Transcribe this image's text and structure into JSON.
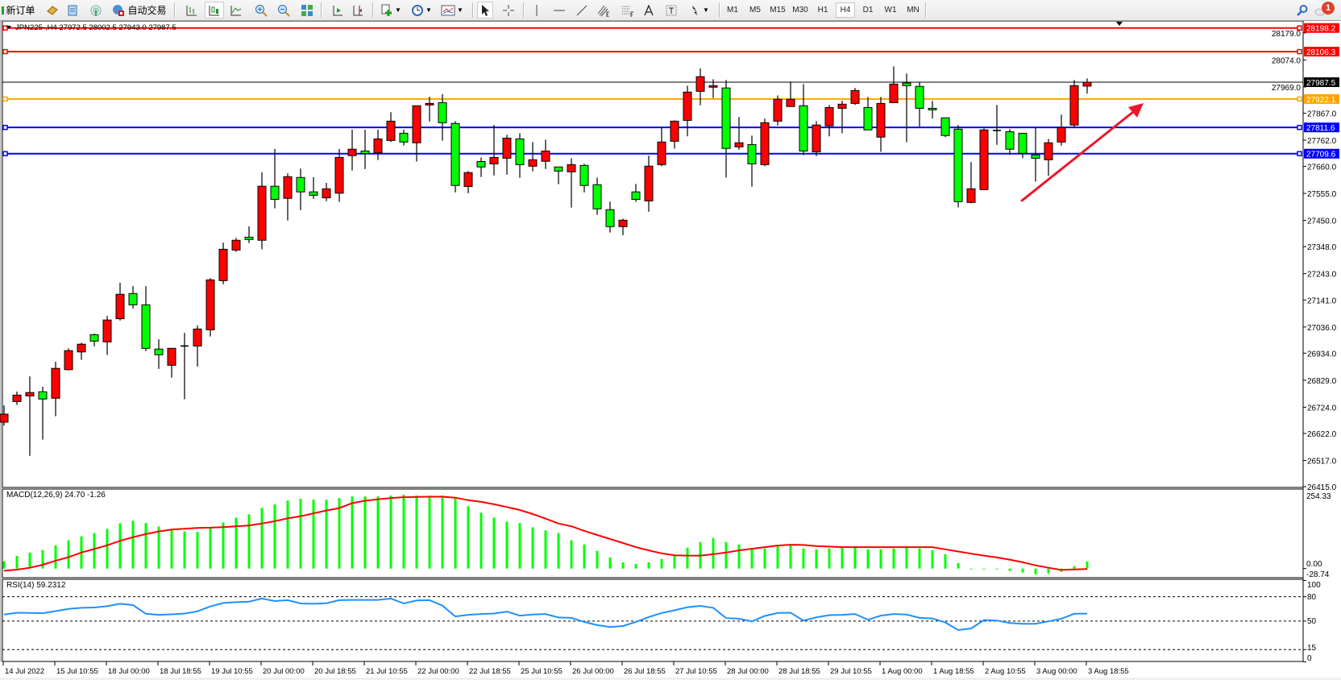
{
  "toolbar": {
    "new_order_label": "新订单",
    "auto_trading_label": "自动交易",
    "timeframes": [
      "M1",
      "M5",
      "M15",
      "M30",
      "H1",
      "H4",
      "D1",
      "W1",
      "MN"
    ],
    "active_timeframe": "H4",
    "notification_count": "1",
    "icons": [
      "new-order-icon",
      "market-watch-icon",
      "data-window-icon",
      "signals-icon",
      "auto-trading-icon",
      "bar-chart-icon",
      "candlestick-icon",
      "line-chart-icon",
      "zoom-in-icon",
      "zoom-out-icon",
      "tile-windows-icon",
      "auto-scroll-icon",
      "chart-shift-icon",
      "add-indicator-icon",
      "periods-clock-icon",
      "templates-icon",
      "cursor-icon",
      "crosshair-icon",
      "vertical-line-icon",
      "horizontal-line-icon",
      "trendline-icon",
      "fibonacci-channel-icon",
      "fibonacci-retracement-icon",
      "text-icon",
      "text-label-icon",
      "arrows-icon",
      "search-icon",
      "notification-icon"
    ]
  },
  "chart_header": "JPN225-,H4  27972.5 28002.5 27943.0 27987.5",
  "colors": {
    "bull": "#ff0000",
    "bear": "#00ff00",
    "outline": "#000000",
    "macd_hist": "#00ff00",
    "macd_signal": "#ff0000",
    "rsi": "#1e90ff",
    "arrow": "#e8192c"
  },
  "chart_data": {
    "type": "candlestick",
    "symbol": "JPN225-",
    "timeframe": "H4",
    "ohlc_order": [
      "open",
      "high",
      "low",
      "close"
    ],
    "candles": [
      [
        26666,
        26731,
        26653,
        26697
      ],
      [
        26746,
        26785,
        26733,
        26771
      ],
      [
        26768,
        26844,
        26535,
        26781
      ],
      [
        26784,
        26804,
        26598,
        26756
      ],
      [
        26759,
        26901,
        26689,
        26875
      ],
      [
        26870,
        26953,
        26867,
        26944
      ],
      [
        26939,
        26975,
        26908,
        26969
      ],
      [
        27006,
        27010,
        26961,
        26981
      ],
      [
        26978,
        27079,
        26927,
        27063
      ],
      [
        27068,
        27208,
        27061,
        27163
      ],
      [
        27166,
        27195,
        27108,
        27122
      ],
      [
        27122,
        27195,
        26942,
        26953
      ],
      [
        26950,
        26988,
        26873,
        26928
      ],
      [
        26887,
        26953,
        26839,
        26953
      ],
      [
        26960,
        27013,
        26755,
        26962
      ],
      [
        26962,
        27042,
        26882,
        27028
      ],
      [
        27025,
        27226,
        26999,
        27219
      ],
      [
        27216,
        27364,
        27202,
        27338
      ],
      [
        27335,
        27382,
        27328,
        27373
      ],
      [
        27385,
        27427,
        27362,
        27376
      ],
      [
        27373,
        27637,
        27338,
        27583
      ],
      [
        27583,
        27728,
        27497,
        27532
      ],
      [
        27536,
        27633,
        27450,
        27620
      ],
      [
        27617,
        27652,
        27490,
        27561
      ],
      [
        27561,
        27618,
        27534,
        27548
      ],
      [
        27538,
        27596,
        27525,
        27573
      ],
      [
        27556,
        27728,
        27522,
        27695
      ],
      [
        27702,
        27803,
        27644,
        27727
      ],
      [
        27720,
        27803,
        27650,
        27710
      ],
      [
        27713,
        27803,
        27685,
        27767
      ],
      [
        27761,
        27871,
        27755,
        27836
      ],
      [
        27789,
        27803,
        27741,
        27755
      ],
      [
        27752,
        27896,
        27679,
        27896
      ],
      [
        27899,
        27931,
        27835,
        27905
      ],
      [
        27908,
        27941,
        27760,
        27830
      ],
      [
        27827,
        27836,
        27559,
        27586
      ],
      [
        27582,
        27642,
        27556,
        27636
      ],
      [
        27679,
        27695,
        27619,
        27658
      ],
      [
        27670,
        27821,
        27625,
        27695
      ],
      [
        27692,
        27783,
        27628,
        27770
      ],
      [
        27767,
        27789,
        27616,
        27667
      ],
      [
        27661,
        27755,
        27641,
        27686
      ],
      [
        27680,
        27764,
        27650,
        27720
      ],
      [
        27658,
        27658,
        27591,
        27642
      ],
      [
        27639,
        27692,
        27500,
        27667
      ],
      [
        27664,
        27670,
        27559,
        27586
      ],
      [
        27589,
        27617,
        27472,
        27495
      ],
      [
        27492,
        27523,
        27403,
        27426
      ],
      [
        27426,
        27457,
        27393,
        27451
      ],
      [
        27561,
        27592,
        27522,
        27532
      ],
      [
        27526,
        27702,
        27484,
        27661
      ],
      [
        27667,
        27811,
        27661,
        27755
      ],
      [
        27758,
        27839,
        27729,
        27836
      ],
      [
        27839,
        27974,
        27777,
        27949
      ],
      [
        27952,
        28041,
        27898,
        28009
      ],
      [
        27968,
        27999,
        27926,
        27974
      ],
      [
        27965,
        27996,
        27617,
        27730
      ],
      [
        27736,
        27852,
        27725,
        27752
      ],
      [
        27745,
        27780,
        27581,
        27670
      ],
      [
        27667,
        27846,
        27661,
        27830
      ],
      [
        27836,
        27936,
        27819,
        27921
      ],
      [
        27893,
        27990,
        27893,
        27921
      ],
      [
        27896,
        27980,
        27704,
        27720
      ],
      [
        27717,
        27836,
        27700,
        27821
      ],
      [
        27818,
        27899,
        27777,
        27889
      ],
      [
        27886,
        27915,
        27789,
        27902
      ],
      [
        27905,
        27965,
        27899,
        27955
      ],
      [
        27889,
        27930,
        27802,
        27802
      ],
      [
        27774,
        27930,
        27717,
        27905
      ],
      [
        27908,
        28049,
        27908,
        27980
      ],
      [
        27984,
        28021,
        27754,
        27974
      ],
      [
        27971,
        27987,
        27814,
        27886
      ],
      [
        27886,
        27915,
        27846,
        27880
      ],
      [
        27849,
        27849,
        27774,
        27780
      ],
      [
        27805,
        27821,
        27501,
        27523
      ],
      [
        27520,
        27677,
        27517,
        27573
      ],
      [
        27570,
        27808,
        27567,
        27802
      ],
      [
        27798,
        27899,
        27744,
        27800
      ],
      [
        27795,
        27805,
        27705,
        27727
      ],
      [
        27789,
        27789,
        27692,
        27711
      ],
      [
        27705,
        27811,
        27601,
        27692
      ],
      [
        27686,
        27767,
        27623,
        27752
      ],
      [
        27755,
        27861,
        27741,
        27811
      ],
      [
        27821,
        27996,
        27814,
        27974
      ],
      [
        27972.5,
        28002.5,
        27943.0,
        27987.5
      ]
    ],
    "ylim": [
      26415.0,
      28198.2
    ],
    "y_ticks": [
      "28179.0",
      "28074.0",
      "27969.0",
      "27867.0",
      "27762.0",
      "27660.0",
      "27555.0",
      "27450.0",
      "27348.0",
      "27243.0",
      "27141.0",
      "27036.0",
      "26934.0",
      "26829.0",
      "26724.0",
      "26622.0",
      "26517.0",
      "26415.0"
    ],
    "x_labels": [
      "14 Jul 2022",
      "15 Jul 10:55",
      "18 Jul 00:00",
      "18 Jul 18:55",
      "19 Jul 10:55",
      "20 Jul 00:00",
      "20 Jul 18:55",
      "21 Jul 10:55",
      "22 Jul 00:00",
      "22 Jul 18:55",
      "25 Jul 10:55",
      "26 Jul 00:00",
      "26 Jul 18:55",
      "27 Jul 10:55",
      "28 Jul 00:00",
      "28 Jul 18:55",
      "29 Jul 10:55",
      "1 Aug 00:00",
      "1 Aug 18:55",
      "2 Aug 10:55",
      "3 Aug 00:00",
      "3 Aug 18:55"
    ],
    "x_label_every_n_candles": 4,
    "levels": [
      {
        "price": "28198.2",
        "color": "#ff0000"
      },
      {
        "price": "28106.3",
        "color": "#ff0000"
      },
      {
        "price": "27922.1",
        "color": "#ffa500"
      },
      {
        "price": "27811.6",
        "color": "#0000ff"
      },
      {
        "price": "27709.6",
        "color": "#0000ff"
      }
    ],
    "current_price": {
      "price": "27987.5",
      "color": "#000000"
    },
    "annotation": {
      "type": "arrow",
      "direction": "up-right",
      "from_candle": 79,
      "from_price": 27300,
      "to_candle": 88,
      "to_price": 27683
    },
    "macd": {
      "label": "MACD(12,26,9) 24.70 -1.26",
      "axis_labels": [
        "254.33",
        "0.00",
        "-28.74"
      ],
      "range": [
        -28.74,
        254.33
      ],
      "histogram": [
        25.2,
        43.9,
        55.1,
        63.5,
        80.3,
        97.1,
        111.1,
        122.3,
        136.3,
        155.9,
        164.3,
        156.9,
        144.8,
        134.5,
        128.0,
        126.1,
        140.1,
        158.8,
        175.6,
        186.8,
        209.2,
        220.5,
        234.5,
        240.0,
        237.2,
        237.2,
        242.8,
        248.4,
        248.4,
        248.4,
        251.2,
        254.0,
        251.2,
        251.2,
        251.2,
        242.8,
        214.8,
        192.4,
        175.6,
        161.6,
        156.9,
        142.0,
        131.7,
        122.3,
        97.1,
        83.1,
        60.7,
        38.3,
        21.5,
        15.9,
        21.5,
        32.7,
        43.9,
        71.9,
        91.5,
        105.5,
        91.5,
        83.1,
        66.3,
        69.1,
        77.5,
        80.3,
        69.1,
        66.3,
        69.1,
        71.9,
        77.5,
        66.3,
        66.3,
        69.1,
        77.5,
        69.1,
        63.5,
        49.5,
        18.7,
        -2.8,
        -1.9,
        -0.9,
        -8.4,
        -14.0,
        -19.6,
        -16.8,
        -11.2,
        8.4,
        24.7
      ],
      "signal": [
        -7.5,
        -3.7,
        2.8,
        13.1,
        27.1,
        39.2,
        55.1,
        67.3,
        80.3,
        95.3,
        108.3,
        118.6,
        127.9,
        134.5,
        137.3,
        140.1,
        141.0,
        142.9,
        145.7,
        148.5,
        155.0,
        163.5,
        172.8,
        180.3,
        190.0,
        200.0,
        208.3,
        225.2,
        233.6,
        238.2,
        243.0,
        245.7,
        246.6,
        247.5,
        247.5,
        244.0,
        235.4,
        229.8,
        221.4,
        212.0,
        201.8,
        187.8,
        172.0,
        155.0,
        145.7,
        129.8,
        115.8,
        101.8,
        87.8,
        73.8,
        62.6,
        52.3,
        45.8,
        44.8,
        44.8,
        49.5,
        55.1,
        62.6,
        68.2,
        73.8,
        79.4,
        82.2,
        81.3,
        77.5,
        75.7,
        73.8,
        73.8,
        73.8,
        73.8,
        73.8,
        73.8,
        73.8,
        73.8,
        66.3,
        58.8,
        51.4,
        44.8,
        38.3,
        30.8,
        21.5,
        11.2,
        2.8,
        -4.7,
        -3.0,
        -1.26
      ]
    },
    "rsi": {
      "label": "RSI(14) 59.2312",
      "axis_labels": [
        "100",
        "80",
        "50",
        "15",
        "0"
      ],
      "levels": [
        80,
        50,
        15
      ],
      "range": [
        0,
        100
      ],
      "values": [
        58,
        60.3,
        60,
        59.7,
        62.3,
        65,
        66.3,
        66.7,
        68.3,
        71.3,
        69.7,
        59,
        57.7,
        58.3,
        59.3,
        62,
        68,
        72.3,
        73.3,
        74,
        77.7,
        74.7,
        75.7,
        71.7,
        71.3,
        72,
        75.7,
        76,
        76,
        76,
        77.7,
        71.7,
        75.3,
        75.7,
        69,
        55.7,
        57.7,
        58.7,
        59.3,
        61.7,
        56.7,
        58,
        58.7,
        54.5,
        54,
        49,
        45,
        42.7,
        44,
        49,
        55,
        60,
        63.3,
        67,
        68.7,
        66.3,
        53.7,
        53,
        49.7,
        56.3,
        60,
        60.3,
        50.7,
        54.7,
        57.3,
        57.7,
        58.7,
        51.7,
        56.7,
        58.7,
        58,
        54,
        53.3,
        48.3,
        39,
        41,
        51.3,
        50.7,
        47.7,
        46.7,
        46.7,
        49.7,
        53,
        59,
        59.2312
      ]
    }
  }
}
